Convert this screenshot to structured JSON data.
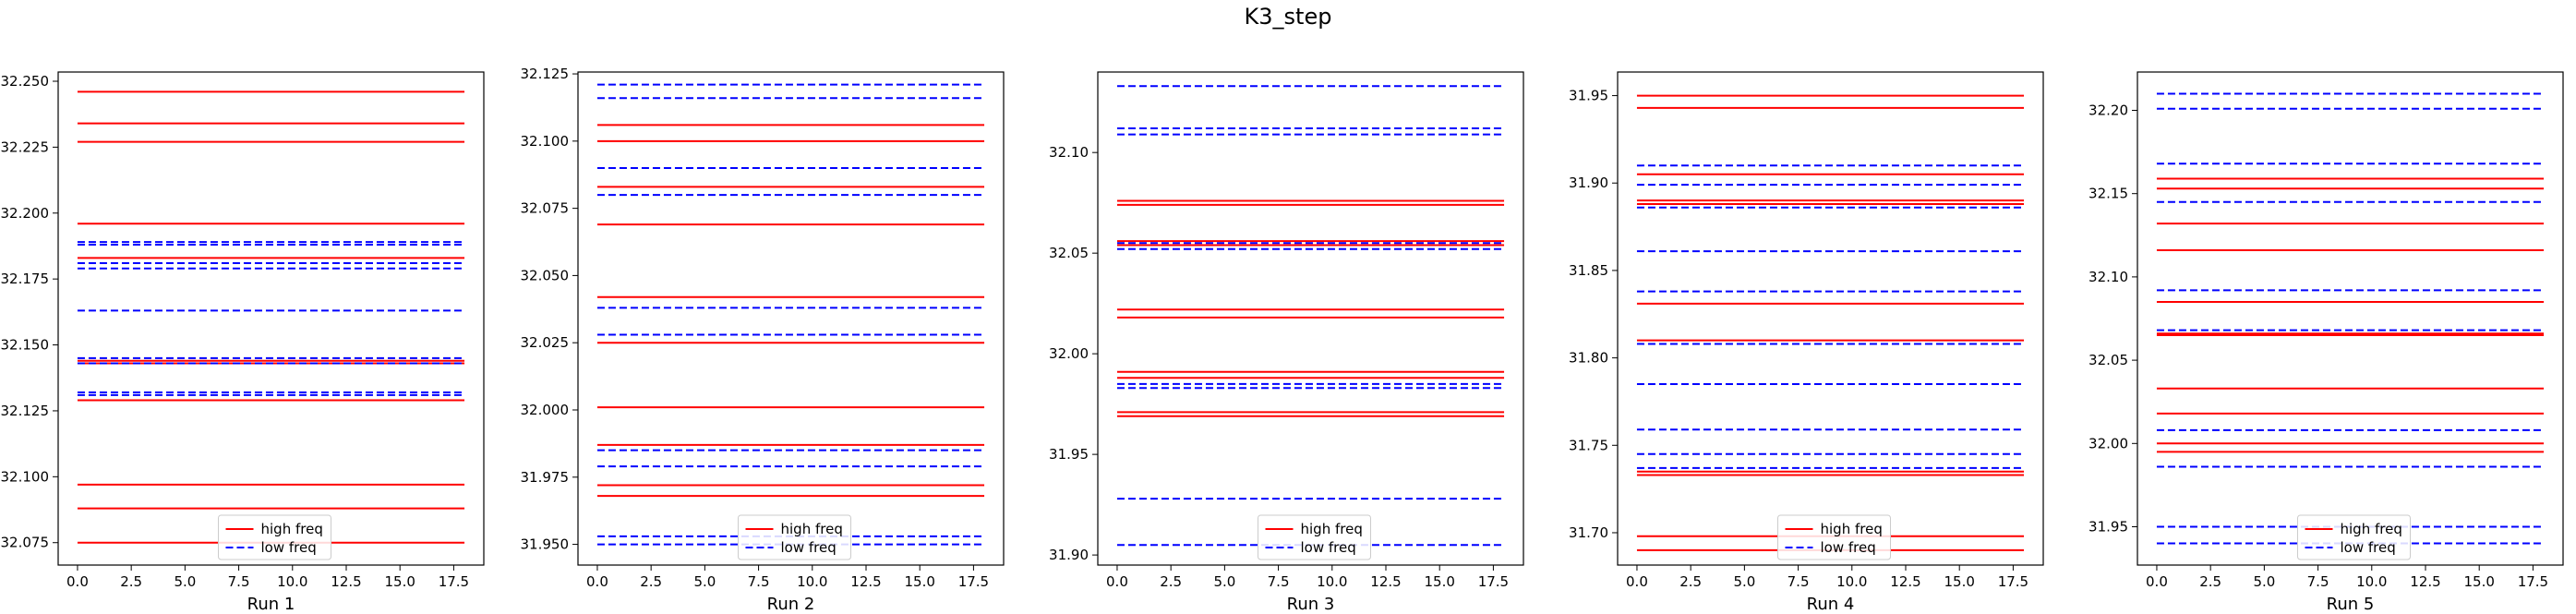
{
  "figure": {
    "title": "K3_step"
  },
  "legend": {
    "items": [
      {
        "label": "high freq",
        "color": "#ff0000",
        "dash": "solid"
      },
      {
        "label": "low freq",
        "color": "#0000ff",
        "dash": "dashed"
      }
    ],
    "placement": "lower-center"
  },
  "chart_data": [
    {
      "type": "line",
      "xlabel": "Run 1",
      "xlim": [
        -0.9,
        18.9
      ],
      "ylim": [
        32.0665,
        32.2535
      ],
      "xticks": [
        0.0,
        2.5,
        5.0,
        7.5,
        10.0,
        12.5,
        15.0,
        17.5
      ],
      "xtick_labels": [
        "0.0",
        "2.5",
        "5.0",
        "7.5",
        "10.0",
        "12.5",
        "15.0",
        "17.5"
      ],
      "yticks": [
        32.075,
        32.1,
        32.125,
        32.15,
        32.175,
        32.2,
        32.225,
        32.25
      ],
      "ytick_labels": [
        "32.075",
        "32.100",
        "32.125",
        "32.150",
        "32.175",
        "32.200",
        "32.225",
        "32.250"
      ],
      "x_range": [
        0,
        18
      ],
      "series": [
        {
          "group": "high freq",
          "values": [
            32.246,
            32.234,
            32.227,
            32.196,
            32.183,
            32.144,
            32.143,
            32.129,
            32.097,
            32.088,
            32.075
          ]
        },
        {
          "group": "low freq",
          "values": [
            32.189,
            32.188,
            32.181,
            32.179,
            32.163,
            32.145,
            32.143,
            32.132,
            32.131
          ]
        }
      ]
    },
    {
      "type": "line",
      "xlabel": "Run 2",
      "xlim": [
        -0.9,
        18.9
      ],
      "ylim": [
        31.9423,
        32.1257
      ],
      "xticks": [
        0.0,
        2.5,
        5.0,
        7.5,
        10.0,
        12.5,
        15.0,
        17.5
      ],
      "xtick_labels": [
        "0.0",
        "2.5",
        "5.0",
        "7.5",
        "10.0",
        "12.5",
        "15.0",
        "17.5"
      ],
      "yticks": [
        31.95,
        31.975,
        32.0,
        32.025,
        32.05,
        32.075,
        32.1,
        32.125
      ],
      "ytick_labels": [
        "31.950",
        "31.975",
        "32.000",
        "32.025",
        "32.050",
        "32.075",
        "32.100",
        "32.125"
      ],
      "x_range": [
        0,
        18
      ],
      "series": [
        {
          "group": "high freq",
          "values": [
            32.106,
            32.1,
            32.083,
            32.069,
            32.042,
            32.025,
            32.001,
            31.987,
            31.972,
            31.968
          ]
        },
        {
          "group": "low freq",
          "values": [
            32.121,
            32.116,
            32.09,
            32.08,
            32.038,
            32.028,
            31.985,
            31.979,
            31.953,
            31.95
          ]
        }
      ]
    },
    {
      "type": "line",
      "xlabel": "Run 3",
      "xlim": [
        -0.9,
        18.9
      ],
      "ylim": [
        31.895,
        32.14
      ],
      "xticks": [
        0.0,
        2.5,
        5.0,
        7.5,
        10.0,
        12.5,
        15.0,
        17.5
      ],
      "xtick_labels": [
        "0.0",
        "2.5",
        "5.0",
        "7.5",
        "10.0",
        "12.5",
        "15.0",
        "17.5"
      ],
      "yticks": [
        31.9,
        31.95,
        32.0,
        32.05,
        32.1
      ],
      "ytick_labels": [
        "31.90",
        "31.95",
        "32.00",
        "32.05",
        "32.10"
      ],
      "x_range": [
        0,
        18
      ],
      "series": [
        {
          "group": "high freq",
          "values": [
            32.076,
            32.074,
            32.056,
            32.054,
            32.022,
            32.018,
            31.991,
            31.988,
            31.971,
            31.969
          ]
        },
        {
          "group": "low freq",
          "values": [
            32.133,
            32.112,
            32.109,
            32.055,
            32.052,
            31.985,
            31.983,
            31.928,
            31.905
          ]
        }
      ]
    },
    {
      "type": "line",
      "xlabel": "Run 4",
      "xlim": [
        -0.9,
        18.9
      ],
      "ylim": [
        31.6815,
        31.9635
      ],
      "xticks": [
        0.0,
        2.5,
        5.0,
        7.5,
        10.0,
        12.5,
        15.0,
        17.5
      ],
      "xtick_labels": [
        "0.0",
        "2.5",
        "5.0",
        "7.5",
        "10.0",
        "12.5",
        "15.0",
        "17.5"
      ],
      "yticks": [
        31.7,
        31.75,
        31.8,
        31.85,
        31.9,
        31.95
      ],
      "ytick_labels": [
        "31.70",
        "31.75",
        "31.80",
        "31.85",
        "31.90",
        "31.95"
      ],
      "x_range": [
        0,
        18
      ],
      "series": [
        {
          "group": "high freq",
          "values": [
            31.95,
            31.943,
            31.905,
            31.89,
            31.888,
            31.831,
            31.81,
            31.735,
            31.733,
            31.698,
            31.69
          ]
        },
        {
          "group": "low freq",
          "values": [
            31.91,
            31.899,
            31.886,
            31.861,
            31.838,
            31.808,
            31.785,
            31.759,
            31.745,
            31.737
          ]
        }
      ]
    },
    {
      "type": "line",
      "xlabel": "Run 5",
      "xlim": [
        -0.9,
        18.9
      ],
      "ylim": [
        31.927,
        32.223
      ],
      "xticks": [
        0.0,
        2.5,
        5.0,
        7.5,
        10.0,
        12.5,
        15.0,
        17.5
      ],
      "xtick_labels": [
        "0.0",
        "2.5",
        "5.0",
        "7.5",
        "10.0",
        "12.5",
        "15.0",
        "17.5"
      ],
      "yticks": [
        31.95,
        32.0,
        32.05,
        32.1,
        32.15,
        32.2
      ],
      "ytick_labels": [
        "31.95",
        "32.00",
        "32.05",
        "32.10",
        "32.15",
        "32.20"
      ],
      "x_range": [
        0,
        18
      ],
      "series": [
        {
          "group": "high freq",
          "values": [
            32.159,
            32.153,
            32.132,
            32.116,
            32.085,
            32.066,
            32.065,
            32.033,
            32.018,
            32.0,
            31.995
          ]
        },
        {
          "group": "low freq",
          "values": [
            32.21,
            32.201,
            32.168,
            32.145,
            32.092,
            32.068,
            32.008,
            31.986,
            31.95,
            31.94
          ]
        }
      ]
    }
  ]
}
